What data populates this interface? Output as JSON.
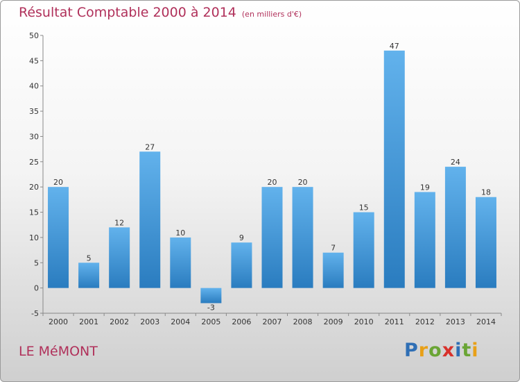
{
  "title": "Résultat Comptable 2000 à 2014",
  "subtitle": "(en milliers d'€)",
  "commune": "LE MéMONT",
  "logo": {
    "text": "Proxiti",
    "letters": [
      "P",
      "r",
      "o",
      "x",
      "i",
      "t",
      "i"
    ],
    "colors": [
      "#2f6fb5",
      "#e8a017",
      "#6aa535",
      "#d8312b",
      "#2f6fb5",
      "#6aa535",
      "#e8a017"
    ]
  },
  "colors": {
    "bar_top": "#62b2ec",
    "bar_bottom": "#2a7cbf",
    "title": "#b0305a",
    "axis": "#888888"
  },
  "chart_data": {
    "type": "bar",
    "categories": [
      "2000",
      "2001",
      "2002",
      "2003",
      "2004",
      "2005",
      "2006",
      "2007",
      "2008",
      "2009",
      "2010",
      "2011",
      "2012",
      "2013",
      "2014"
    ],
    "values": [
      20,
      5,
      12,
      27,
      10,
      -3,
      9,
      20,
      20,
      7,
      15,
      47,
      19,
      24,
      18
    ],
    "title": "Résultat Comptable 2000 à 2014",
    "subtitle": "(en milliers d'€)",
    "ylim": [
      -5,
      50
    ],
    "yticks": [
      -5,
      0,
      5,
      10,
      15,
      20,
      25,
      30,
      35,
      40,
      45,
      50
    ],
    "grid": false,
    "legend": "none"
  }
}
